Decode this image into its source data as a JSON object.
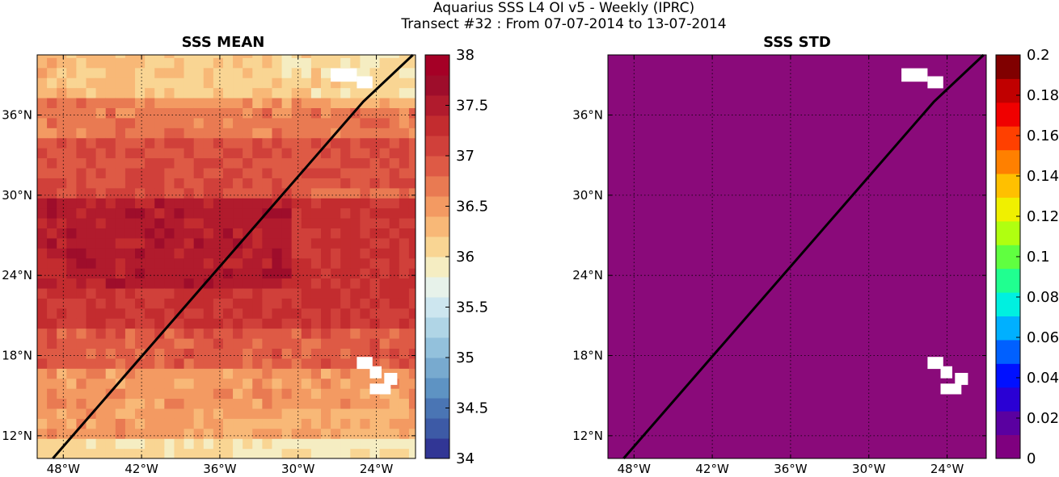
{
  "suptitle": {
    "line1": "Aquarius SSS L4 OI v5 - Weekly (IPRC)",
    "line2": "Transect #32 : From 07-07-2014 to 13-07-2014"
  },
  "colors": {
    "std_fill": "#8a0a7a",
    "transect": "#000000",
    "landmask": "#ffffff"
  },
  "chart_data": [
    {
      "type": "heatmap",
      "title": "SSS MEAN",
      "x_axis": {
        "ticks": [
          -48,
          -42,
          -36,
          -30,
          -24
        ],
        "tick_labels": [
          "48°W",
          "42°W",
          "36°W",
          "30°W",
          "24°W"
        ],
        "range": [
          -50,
          -21
        ]
      },
      "y_axis": {
        "ticks": [
          12,
          18,
          24,
          30,
          36
        ],
        "tick_labels": [
          "12°N",
          "18°N",
          "24°N",
          "30°N",
          "36°N"
        ],
        "range": [
          10.3,
          40.5
        ]
      },
      "grid": true,
      "colorbar": {
        "range": [
          34,
          38
        ],
        "ticks": [
          34,
          34.5,
          35,
          35.5,
          36,
          36.5,
          37,
          37.5,
          38
        ],
        "tick_labels": [
          "34",
          "34.5",
          "35",
          "35.5",
          "36",
          "36.5",
          "37",
          "37.5",
          "38"
        ],
        "colors": [
          "#313695",
          "#3d5aa6",
          "#4a75b4",
          "#5e93c3",
          "#78aacf",
          "#93c1dc",
          "#b0d5e6",
          "#cde6ef",
          "#e7f2ea",
          "#f5edc2",
          "#f9d593",
          "#f8b877",
          "#f39a62",
          "#e97a52",
          "#de5a45",
          "#d0403a",
          "#c32c2f",
          "#b11b2d",
          "#9e0d2b",
          "#a50026"
        ]
      },
      "field_description_bands": [
        {
          "lat_range": [
            10.3,
            12
          ],
          "sss": 36.1
        },
        {
          "lat_range": [
            12,
            17
          ],
          "sss": 36.5
        },
        {
          "lat_range": [
            17,
            20
          ],
          "sss": 36.9
        },
        {
          "lat_range": [
            20,
            23
          ],
          "sss": 37.2
        },
        {
          "lat_range": [
            23,
            30
          ],
          "sss": 37.5
        },
        {
          "lat_range": [
            30,
            34
          ],
          "sss": 37.0
        },
        {
          "lat_range": [
            34,
            37
          ],
          "sss": 36.7
        },
        {
          "lat_range": [
            37,
            40.5
          ],
          "sss": 36.3
        }
      ],
      "transect": {
        "lon": [
          -48.8,
          -25.0,
          -21.2
        ],
        "lat": [
          10.3,
          37.0,
          40.5
        ]
      }
    },
    {
      "type": "heatmap",
      "title": "SSS STD",
      "x_axis": {
        "ticks": [
          -48,
          -42,
          -36,
          -30,
          -24
        ],
        "tick_labels": [
          "48°W",
          "42°W",
          "36°W",
          "30°W",
          "24°W"
        ],
        "range": [
          -50,
          -21
        ]
      },
      "y_axis": {
        "ticks": [
          12,
          18,
          24,
          30,
          36
        ],
        "tick_labels": [
          "12°N",
          "18°N",
          "24°N",
          "30°N",
          "36°N"
        ],
        "range": [
          10.3,
          40.5
        ]
      },
      "grid": true,
      "colorbar": {
        "range": [
          0,
          0.2
        ],
        "ticks": [
          0,
          0.02,
          0.04,
          0.06,
          0.08,
          0.1,
          0.12,
          0.14,
          0.16,
          0.18,
          0.2
        ],
        "tick_labels": [
          "0",
          "0.02",
          "0.04",
          "0.06",
          "0.08",
          "0.1",
          "0.12",
          "0.14",
          "0.16",
          "0.18",
          "0.2"
        ],
        "colors": [
          "#7f007f",
          "#5a00a0",
          "#2a00d4",
          "#0010ff",
          "#0060ff",
          "#00b0ff",
          "#00f0e0",
          "#20ff90",
          "#60ff40",
          "#b0ff10",
          "#f0f000",
          "#ffc000",
          "#ff8000",
          "#ff4000",
          "#f00000",
          "#c00000",
          "#800000"
        ]
      },
      "uniform_value": 0,
      "transect": {
        "lon": [
          -48.8,
          -25.0,
          -21.2
        ],
        "lat": [
          10.3,
          37.0,
          40.5
        ]
      }
    }
  ]
}
